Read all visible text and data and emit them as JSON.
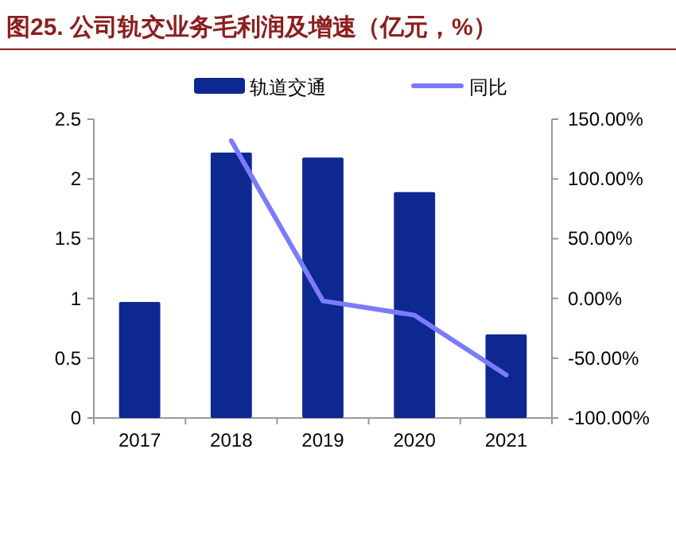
{
  "chart_data": {
    "type": "bar",
    "title": "图25. 公司轨交业务毛利润及增速（亿元，%）",
    "categories": [
      "2017",
      "2018",
      "2019",
      "2020",
      "2021"
    ],
    "series": [
      {
        "name": "轨道交通",
        "color": "#0d2891",
        "values": [
          0.97,
          2.22,
          2.18,
          1.89,
          0.7
        ]
      },
      {
        "name": "同比",
        "type": "line",
        "axis": "y2",
        "color": "#7b7bff",
        "values": [
          null,
          132,
          -2,
          -14,
          -64
        ]
      }
    ],
    "ylim": [
      0,
      2.5
    ],
    "yticks": [
      0,
      0.5,
      1,
      1.5,
      2,
      2.5
    ],
    "y2lim": [
      -100,
      150
    ],
    "y2ticks": [
      {
        "value": -100,
        "label": "-100.00%"
      },
      {
        "value": -50,
        "label": "-50.00%"
      },
      {
        "value": 0,
        "label": "0.00%"
      },
      {
        "value": 50,
        "label": "50.00%"
      },
      {
        "value": 100,
        "label": "100.00%"
      },
      {
        "value": 150,
        "label": "150.00%"
      }
    ],
    "grid": false,
    "legend": "top"
  }
}
